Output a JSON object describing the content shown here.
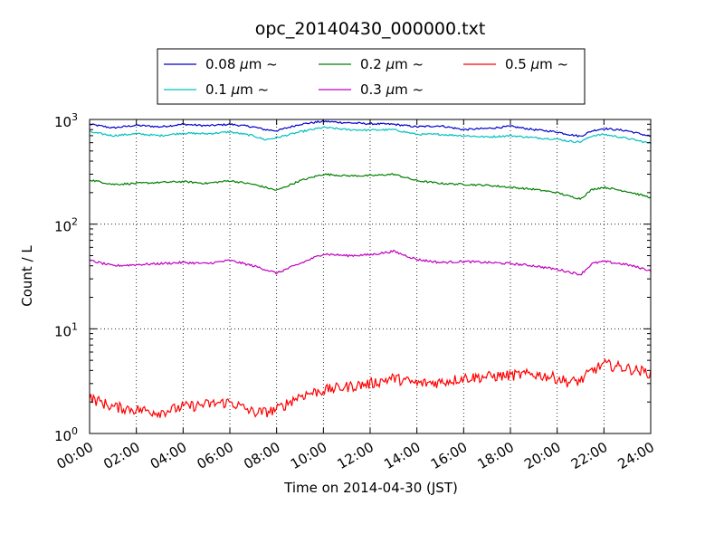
{
  "chart_data": {
    "type": "line",
    "title": "opc_20140430_000000.txt",
    "xlabel": "Time on 2014-04-30 (JST)",
    "ylabel": "Count / L",
    "yscale": "log",
    "ylim": [
      1,
      1000
    ],
    "xlim": [
      "00:00",
      "24:00"
    ],
    "x_ticks": [
      "00:00",
      "02:00",
      "04:00",
      "06:00",
      "08:00",
      "10:00",
      "12:00",
      "14:00",
      "16:00",
      "18:00",
      "20:00",
      "22:00",
      "24:00"
    ],
    "y_ticks": [
      {
        "base": "10",
        "exp": "0",
        "value": 1
      },
      {
        "base": "10",
        "exp": "1",
        "value": 10
      },
      {
        "base": "10",
        "exp": "2",
        "value": 100
      },
      {
        "base": "10",
        "exp": "3",
        "value": 1000
      }
    ],
    "grid": true,
    "legend_position": "top",
    "x_hours": [
      0,
      1,
      2,
      3,
      4,
      5,
      6,
      7,
      7.5,
      8,
      9,
      10,
      11,
      12,
      13,
      14,
      15,
      16,
      17,
      18,
      19,
      20,
      20.5,
      21,
      21.5,
      22,
      23,
      24
    ],
    "series": [
      {
        "name_prefix": "0.08 ",
        "name_mu": "μ",
        "name_suffix": "m ~",
        "color": "#0000cc",
        "values": [
          900,
          830,
          880,
          850,
          900,
          870,
          900,
          850,
          800,
          780,
          900,
          960,
          930,
          910,
          900,
          850,
          870,
          800,
          820,
          860,
          800,
          760,
          720,
          690,
          780,
          820,
          780,
          690
        ]
      },
      {
        "name_prefix": "0.1 ",
        "name_mu": "μ",
        "name_suffix": "m ~",
        "color": "#00c0c0",
        "values": [
          760,
          700,
          730,
          700,
          740,
          730,
          760,
          700,
          640,
          670,
          760,
          840,
          800,
          790,
          800,
          720,
          720,
          700,
          680,
          700,
          670,
          650,
          620,
          610,
          700,
          720,
          660,
          590
        ]
      },
      {
        "name_prefix": "0.2 ",
        "name_mu": "μ",
        "name_suffix": "m ~",
        "color": "#008000",
        "values": [
          265,
          240,
          245,
          250,
          255,
          245,
          260,
          240,
          225,
          210,
          260,
          300,
          290,
          290,
          300,
          260,
          245,
          240,
          235,
          225,
          215,
          200,
          185,
          175,
          215,
          225,
          205,
          180
        ]
      },
      {
        "name_prefix": "0.3 ",
        "name_mu": "μ",
        "name_suffix": "m ~",
        "color": "#bf00bf",
        "values": [
          45,
          40,
          41,
          42,
          43,
          42,
          45,
          40,
          37,
          34,
          42,
          52,
          50,
          51,
          55,
          46,
          43,
          44,
          43,
          42,
          40,
          37,
          35,
          33,
          42,
          44,
          41,
          36
        ]
      },
      {
        "name_prefix": "0.5 ",
        "name_mu": "μ",
        "name_suffix": "m ~",
        "color": "#ff0000",
        "values": [
          2.2,
          1.8,
          1.7,
          1.6,
          1.8,
          1.9,
          2.0,
          1.6,
          1.6,
          1.7,
          2.3,
          2.6,
          2.8,
          3.0,
          3.4,
          3.0,
          3.1,
          3.4,
          3.5,
          3.6,
          3.7,
          3.4,
          3.1,
          3.2,
          4.0,
          4.6,
          4.2,
          3.8
        ]
      }
    ]
  }
}
